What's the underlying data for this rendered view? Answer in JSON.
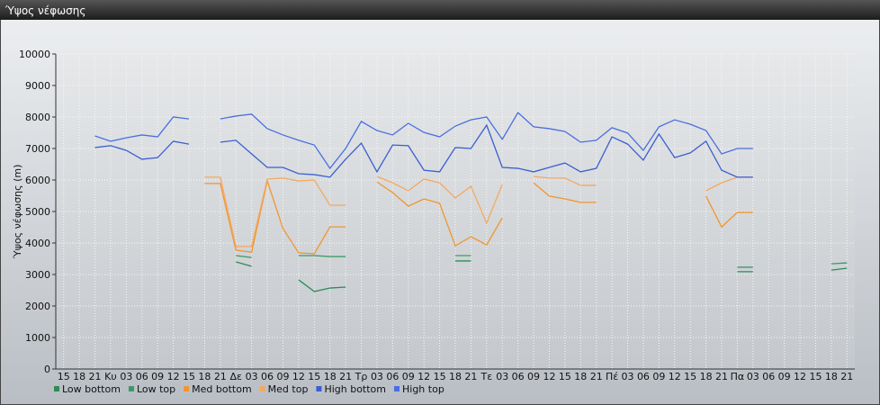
{
  "chart_data": {
    "type": "line",
    "title": "Ύψος νέφωσης",
    "y_label": "Ύψος νέφωσης (m)",
    "categories": [
      "15",
      "18",
      "21",
      "Κυ",
      "03",
      "06",
      "09",
      "12",
      "15",
      "18",
      "21",
      "Δε",
      "03",
      "06",
      "09",
      "12",
      "15",
      "18",
      "21",
      "Τρ",
      "03",
      "06",
      "09",
      "12",
      "15",
      "18",
      "21",
      "Τε",
      "03",
      "06",
      "09",
      "12",
      "15",
      "18",
      "21",
      "Πέ",
      "03",
      "06",
      "09",
      "12",
      "15",
      "18",
      "21",
      "Πα",
      "03",
      "06",
      "09",
      "12",
      "15",
      "18",
      "21"
    ],
    "series": [
      {
        "name": "Low bottom",
        "color": "#2e8b57",
        "values": [
          null,
          null,
          null,
          null,
          null,
          null,
          null,
          null,
          null,
          null,
          null,
          3400,
          3260,
          null,
          null,
          2830,
          2460,
          2570,
          2600,
          null,
          null,
          null,
          null,
          null,
          null,
          3430,
          3430,
          null,
          null,
          null,
          null,
          null,
          null,
          null,
          null,
          null,
          null,
          null,
          null,
          null,
          null,
          null,
          null,
          3090,
          3090,
          null,
          null,
          null,
          null,
          3140,
          3200
        ]
      },
      {
        "name": "Low top",
        "color": "#3a9a68",
        "values": [
          null,
          null,
          null,
          null,
          null,
          null,
          null,
          null,
          null,
          null,
          null,
          3600,
          3540,
          null,
          null,
          3600,
          3600,
          3570,
          3570,
          null,
          null,
          null,
          null,
          null,
          null,
          3600,
          3600,
          null,
          null,
          null,
          null,
          null,
          null,
          null,
          null,
          null,
          null,
          null,
          null,
          null,
          null,
          null,
          null,
          3230,
          3230,
          null,
          null,
          null,
          null,
          3340,
          3370
        ]
      },
      {
        "name": "Med bottom",
        "color": "#f0962e",
        "values": [
          null,
          null,
          null,
          null,
          null,
          null,
          null,
          null,
          null,
          5890,
          5890,
          3770,
          3710,
          5970,
          4460,
          3690,
          3660,
          4510,
          4510,
          null,
          5940,
          5600,
          5170,
          5400,
          5260,
          3910,
          4200,
          3940,
          4800,
          null,
          5910,
          5490,
          5400,
          5290,
          5290,
          null,
          null,
          null,
          null,
          null,
          null,
          5490,
          4510,
          4970,
          4970,
          null,
          null,
          null,
          null,
          null,
          null
        ]
      },
      {
        "name": "Med top",
        "color": "#f4a860",
        "values": [
          null,
          null,
          null,
          null,
          null,
          null,
          null,
          null,
          null,
          6090,
          6090,
          3890,
          3890,
          6030,
          6060,
          5970,
          6000,
          5200,
          5200,
          null,
          6110,
          5910,
          5660,
          6030,
          5910,
          5430,
          5800,
          4630,
          5860,
          null,
          6110,
          6060,
          6060,
          5830,
          5830,
          null,
          null,
          null,
          null,
          null,
          null,
          5660,
          5910,
          6090,
          6090,
          null,
          null,
          null,
          null,
          null,
          null
        ]
      },
      {
        "name": "High bottom",
        "color": "#3a5fd0",
        "values": [
          null,
          null,
          7030,
          7090,
          6940,
          6660,
          6710,
          7230,
          7140,
          null,
          7200,
          7260,
          6830,
          6400,
          6400,
          6200,
          6170,
          6090,
          6660,
          7170,
          6260,
          7110,
          7090,
          6310,
          6260,
          7030,
          7000,
          7740,
          6400,
          6370,
          6260,
          6400,
          6540,
          6260,
          6370,
          7370,
          7140,
          6630,
          7460,
          6710,
          6860,
          7230,
          6310,
          6090,
          6090,
          null,
          null,
          null,
          null,
          null,
          null
        ]
      },
      {
        "name": "High top",
        "color": "#4a6fe0",
        "values": [
          null,
          null,
          7400,
          7230,
          7340,
          7430,
          7370,
          8000,
          7940,
          null,
          7940,
          8030,
          8090,
          7630,
          7430,
          7260,
          7110,
          6370,
          7000,
          7860,
          7570,
          7430,
          7800,
          7510,
          7370,
          7710,
          7910,
          8000,
          7290,
          8140,
          7690,
          7630,
          7540,
          7200,
          7260,
          7660,
          7490,
          6940,
          7690,
          7910,
          7770,
          7570,
          6830,
          7000,
          7000,
          null,
          null,
          null,
          null,
          null,
          null
        ]
      }
    ],
    "ylim": [
      0,
      10000
    ],
    "yticks": [
      0,
      1000,
      2000,
      3000,
      4000,
      5000,
      6000,
      7000,
      8000,
      9000,
      10000
    ],
    "grid": true
  }
}
